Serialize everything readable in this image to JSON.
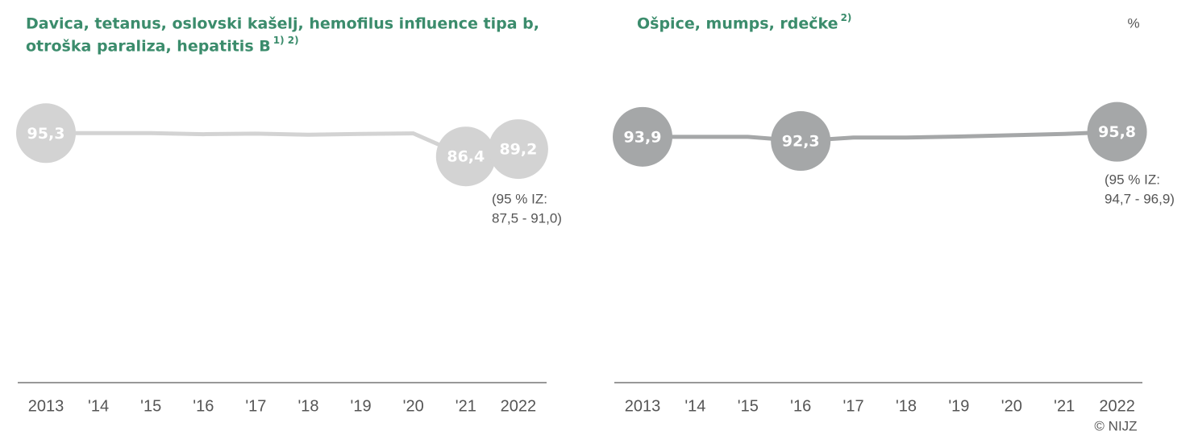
{
  "unit": "%",
  "source": "© NIJZ",
  "chart_data": [
    {
      "type": "line",
      "title": [
        "Davica, tetanus, oslovski kašelj, hemofilus influence tipa b,",
        "otroška  paraliza, hepatitis B"
      ],
      "title_note": "1) 2)",
      "categories": [
        "2013",
        "'14",
        "'15",
        "'16",
        "'17",
        "'18",
        "'19",
        "'20",
        "'21",
        "2022"
      ],
      "ylim": [
        0,
        100
      ],
      "series": [
        {
          "color": "#d3d3d3",
          "values": [
            95.3,
            95.3,
            95.3,
            94.9,
            95.1,
            94.7,
            95.0,
            95.2,
            86.4,
            89.2
          ],
          "value_labels": [
            "95,3",
            null,
            null,
            null,
            null,
            null,
            null,
            null,
            "86,4",
            "89,2"
          ]
        }
      ],
      "annotation": [
        "(95 % IZ:",
        "87,5 - 91,0)"
      ]
    },
    {
      "type": "line",
      "title": [
        "Ošpice, mumps, rdečke"
      ],
      "title_note": "2)",
      "categories": [
        "2013",
        "'14",
        "'15",
        "'16",
        "'17",
        "'18",
        "'19",
        "'20",
        "'21",
        "2022"
      ],
      "ylim": [
        0,
        100
      ],
      "series": [
        {
          "color": "#a5a7a8",
          "values": [
            93.9,
            93.9,
            93.9,
            92.3,
            93.6,
            93.6,
            94.0,
            94.5,
            95.0,
            95.8
          ],
          "value_labels": [
            "93,9",
            null,
            null,
            "92,3",
            null,
            null,
            null,
            null,
            null,
            "95,8"
          ]
        }
      ],
      "annotation": [
        "(95 % IZ:",
        "94,7 - 96,9)"
      ]
    }
  ]
}
